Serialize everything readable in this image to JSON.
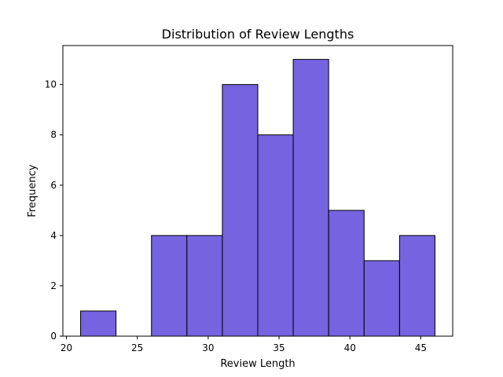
{
  "chart_data": {
    "type": "bar",
    "title": "Distribution of Review Lengths",
    "xlabel": "Review Length",
    "ylabel": "Frequency",
    "bins": [
      {
        "start": 21.0,
        "end": 23.5,
        "count": 1
      },
      {
        "start": 23.5,
        "end": 26.0,
        "count": 0
      },
      {
        "start": 26.0,
        "end": 28.5,
        "count": 4
      },
      {
        "start": 28.5,
        "end": 31.0,
        "count": 4
      },
      {
        "start": 31.0,
        "end": 33.5,
        "count": 10
      },
      {
        "start": 33.5,
        "end": 36.0,
        "count": 8
      },
      {
        "start": 36.0,
        "end": 38.5,
        "count": 11
      },
      {
        "start": 38.5,
        "end": 41.0,
        "count": 5
      },
      {
        "start": 41.0,
        "end": 43.5,
        "count": 3
      },
      {
        "start": 43.5,
        "end": 46.0,
        "count": 4
      }
    ],
    "xlim": [
      19.75,
      47.25
    ],
    "ylim": [
      0,
      11.55
    ],
    "xticks": [
      20,
      25,
      30,
      35,
      40,
      45
    ],
    "yticks": [
      0,
      2,
      4,
      6,
      8,
      10
    ],
    "bar_color": "#7563e0",
    "edge_color": "#000000",
    "grid": false
  }
}
